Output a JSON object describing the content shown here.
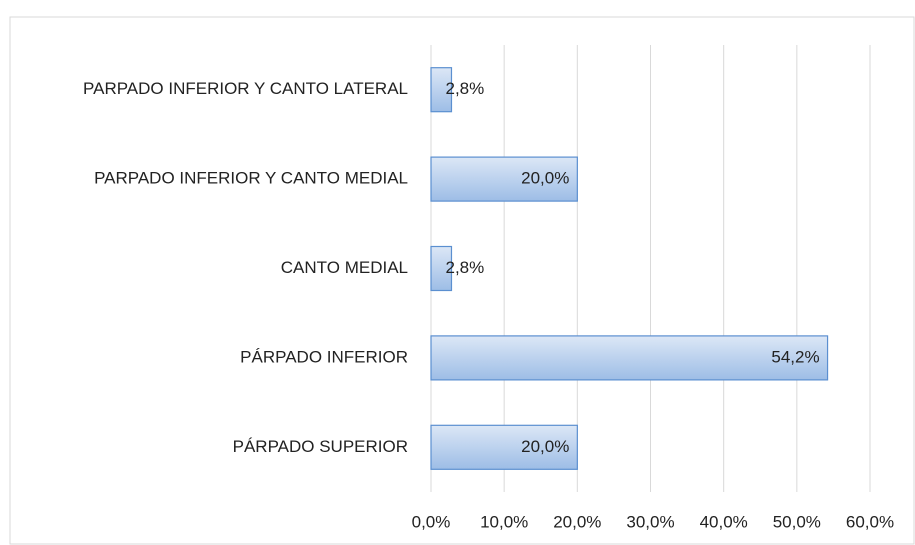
{
  "chart_data": {
    "type": "bar",
    "orientation": "horizontal",
    "categories": [
      "PARPADO INFERIOR Y CANTO LATERAL",
      "PARPADO INFERIOR Y CANTO MEDIAL",
      "CANTO MEDIAL",
      "PÁRPADO INFERIOR",
      "PÁRPADO SUPERIOR"
    ],
    "values": [
      2.8,
      20.0,
      2.8,
      54.2,
      20.0
    ],
    "value_labels": [
      "2,8%",
      "20,0%",
      "2,8%",
      "54,2%",
      "20,0%"
    ],
    "color": "#9dbde6",
    "xlim": [
      0,
      60
    ],
    "xticks": [
      {
        "value": 0,
        "label": "0,0%"
      },
      {
        "value": 10,
        "label": "10,0%"
      },
      {
        "value": 20,
        "label": "20,0%"
      },
      {
        "value": 30,
        "label": "30,0%"
      },
      {
        "value": 40,
        "label": "40,0%"
      },
      {
        "value": 50,
        "label": "50,0%"
      },
      {
        "value": 60,
        "label": "60,0%"
      }
    ],
    "grid": true
  }
}
